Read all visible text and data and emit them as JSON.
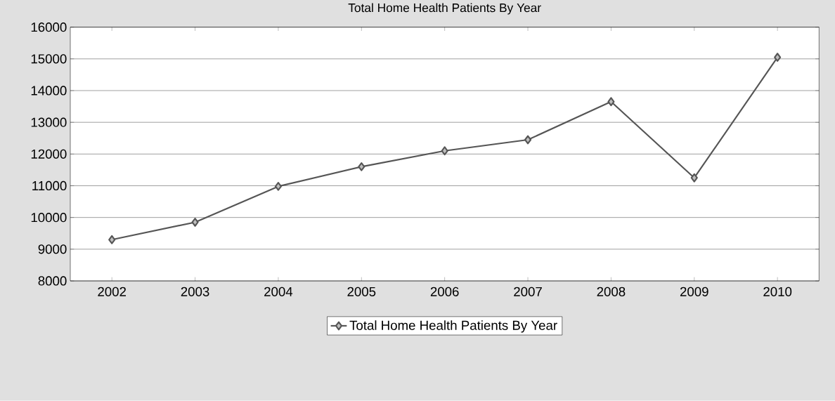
{
  "chart_data": {
    "type": "line",
    "title": "Total Home Health Patients By Year",
    "categories": [
      "2002",
      "2003",
      "2004",
      "2005",
      "2006",
      "2007",
      "2008",
      "2009",
      "2010"
    ],
    "series": [
      {
        "name": "Total Home Health Patients By Year",
        "color": "#555555",
        "values": [
          9300,
          9850,
          10980,
          11600,
          12100,
          12450,
          13650,
          11250,
          15050
        ]
      }
    ],
    "ylim": [
      8000,
      16000
    ],
    "yticks": [
      8000,
      9000,
      10000,
      11000,
      12000,
      13000,
      14000,
      15000,
      16000
    ],
    "grid": "y",
    "legend": "bottom",
    "marker": "diamond",
    "line_style": "solid"
  }
}
